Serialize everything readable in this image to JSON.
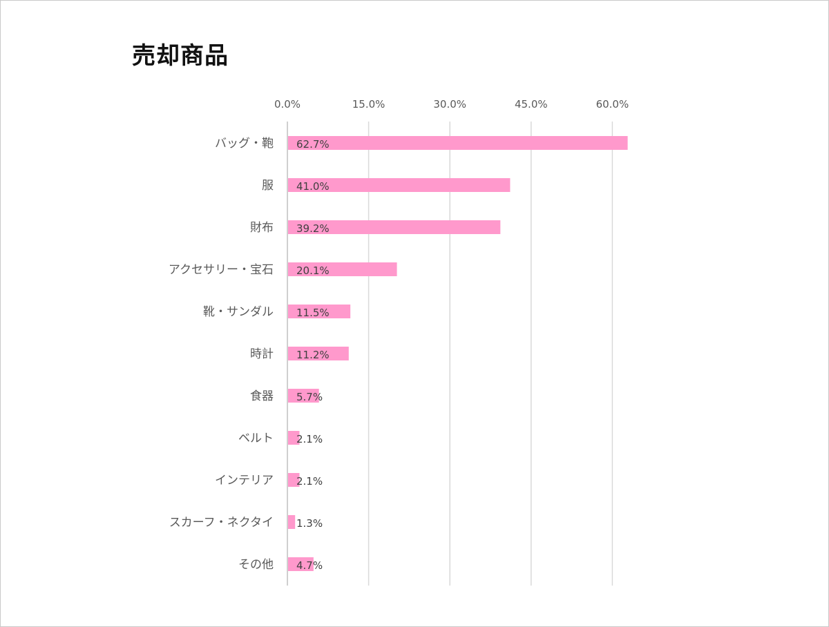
{
  "chart_data": {
    "type": "bar",
    "orientation": "horizontal",
    "title": "売却商品",
    "xlabel": "",
    "ylabel": "",
    "xlim": [
      0,
      63
    ],
    "xticks": [
      0,
      15,
      30,
      45,
      60
    ],
    "xtick_labels": [
      "0.0%",
      "15.0%",
      "30.0%",
      "45.0%",
      "60.0%"
    ],
    "grid": true,
    "legend": "none",
    "bar_color": "#ff99cc",
    "categories": [
      "バッグ・鞄",
      "服",
      "財布",
      "アクセサリー・宝石",
      "靴・サンダル",
      "時計",
      "食器",
      "ベルト",
      "インテリア",
      "スカーフ・ネクタイ",
      "その他"
    ],
    "values": [
      62.7,
      41.0,
      39.2,
      20.1,
      11.5,
      11.2,
      5.7,
      2.1,
      2.1,
      1.3,
      4.7
    ],
    "data_labels": [
      "62.7%",
      "41.0%",
      "39.2%",
      "20.1%",
      "11.5%",
      "11.2%",
      "5.7%",
      "2.1%",
      "2.1%",
      "1.3%",
      "4.7%"
    ]
  }
}
